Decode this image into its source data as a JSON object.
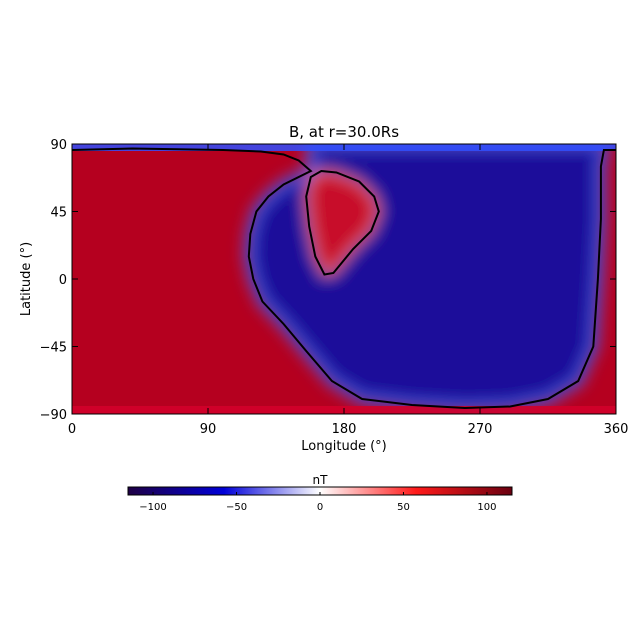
{
  "chart_data": {
    "type": "heatmap",
    "title": "B, at r=30.0Rs",
    "xlabel": "Longitude (°)",
    "ylabel": "Latitude (°)",
    "xlim": [
      0,
      360
    ],
    "ylim": [
      -90,
      90
    ],
    "x_ticks": [
      {
        "value": 0,
        "label": "0"
      },
      {
        "value": 90,
        "label": "90"
      },
      {
        "value": 180,
        "label": "180"
      },
      {
        "value": 270,
        "label": "270"
      },
      {
        "value": 360,
        "label": "360"
      }
    ],
    "y_ticks": [
      {
        "value": 90,
        "label": "90"
      },
      {
        "value": 45,
        "label": "45"
      },
      {
        "value": 0,
        "label": "0"
      },
      {
        "value": -45,
        "label": "−45"
      },
      {
        "value": -90,
        "label": "−90"
      }
    ],
    "colorbar": {
      "label": "nT",
      "range": [
        -115,
        115
      ],
      "colormap": [
        "#1e0044",
        "#0000d8",
        "#ffffff",
        "#ff1a1a",
        "#6a0010"
      ],
      "ticks": [
        {
          "value": -100,
          "label": "−100"
        },
        {
          "value": -50,
          "label": "−50"
        },
        {
          "value": 0,
          "label": "0"
        },
        {
          "value": 50,
          "label": "50"
        },
        {
          "value": 100,
          "label": "100"
        }
      ]
    },
    "regions": [
      {
        "name": "positive",
        "polarity": "red",
        "description_value_nT": 100
      },
      {
        "name": "negative",
        "polarity": "blue",
        "description_value_nT": -100
      }
    ],
    "polarity_inversion_line": {
      "outer_boundary": [
        [
          0,
          86
        ],
        [
          40,
          87
        ],
        [
          100,
          86
        ],
        [
          125,
          85
        ],
        [
          140,
          83
        ],
        [
          150,
          79
        ],
        [
          158,
          72
        ],
        [
          140,
          63
        ],
        [
          130,
          55
        ],
        [
          122,
          45
        ],
        [
          118,
          30
        ],
        [
          117,
          15
        ],
        [
          120,
          0
        ],
        [
          126,
          -15
        ],
        [
          140,
          -30
        ],
        [
          155,
          -48
        ],
        [
          172,
          -68
        ],
        [
          192,
          -80
        ],
        [
          225,
          -84
        ],
        [
          260,
          -86
        ],
        [
          290,
          -85
        ],
        [
          315,
          -80
        ],
        [
          335,
          -68
        ],
        [
          345,
          -45
        ],
        [
          348,
          0
        ],
        [
          350,
          40
        ],
        [
          350,
          75
        ],
        [
          352,
          86
        ],
        [
          360,
          86
        ]
      ],
      "inner_island": [
        [
          165,
          72
        ],
        [
          175,
          71
        ],
        [
          190,
          65
        ],
        [
          200,
          55
        ],
        [
          203,
          45
        ],
        [
          198,
          32
        ],
        [
          186,
          20
        ],
        [
          173,
          4
        ],
        [
          167,
          3
        ],
        [
          161,
          15
        ],
        [
          157,
          35
        ],
        [
          155,
          55
        ],
        [
          158,
          68
        ],
        [
          165,
          72
        ]
      ]
    }
  }
}
